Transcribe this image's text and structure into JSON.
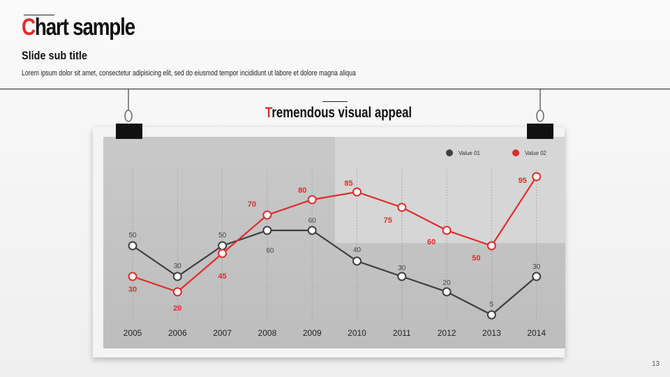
{
  "header": {
    "title_first": "C",
    "title_rest": "hart sample",
    "subtitle": "Slide sub title",
    "body": "Lorem ipsum dolor sit amet, consectetur adipisicing elit, sed do eiusmod tempor incididunt ut labore et dolore magna aliqua"
  },
  "page_number": "13",
  "chart_data": {
    "type": "line",
    "title": "Tremendous visual appeal",
    "title_first": "T",
    "title_rest": "remendous visual appeal",
    "categories": [
      "2005",
      "2006",
      "2007",
      "2008",
      "2009",
      "2010",
      "2011",
      "2012",
      "2013",
      "2014"
    ],
    "series": [
      {
        "name": "Value 01",
        "color": "#3f3f3f",
        "values": [
          50,
          30,
          50,
          60,
          60,
          40,
          30,
          20,
          5,
          30
        ]
      },
      {
        "name": "Value 02",
        "color": "#e02b2b",
        "values": [
          30,
          20,
          45,
          70,
          80,
          85,
          75,
          60,
          50,
          95
        ]
      }
    ],
    "ylim": [
      0,
      100
    ],
    "grid": "vertical dashed",
    "legend": "top-right",
    "xlabel": "",
    "ylabel": ""
  }
}
